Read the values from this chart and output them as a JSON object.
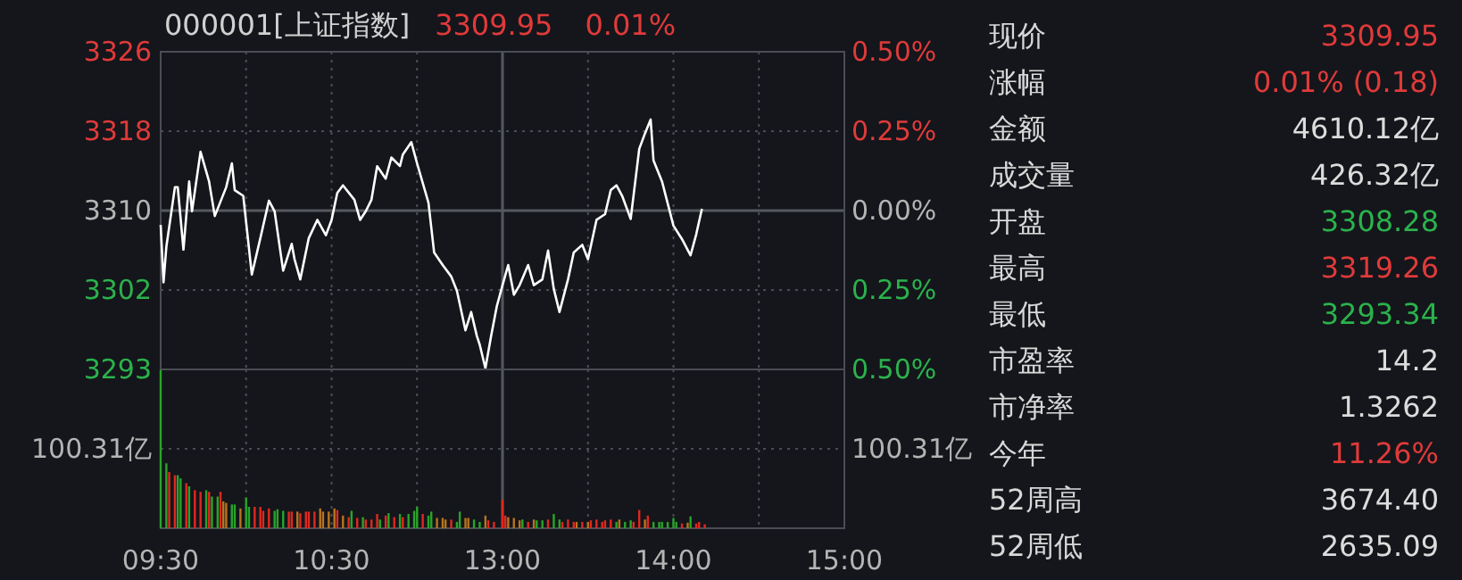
{
  "chart_data": [
    {
      "type": "line",
      "title": "000001[上证指数]",
      "annotations": [
        "3309.95",
        "0.01%"
      ],
      "categories": [
        null,
        null,
        null,
        null,
        null,
        null,
        null,
        null,
        null,
        null,
        null,
        null,
        null,
        null,
        null,
        null,
        null,
        null,
        null,
        null,
        null,
        null,
        null,
        null,
        null,
        null,
        null,
        null,
        null,
        null,
        null,
        null,
        null,
        null,
        null,
        null,
        null,
        null,
        null,
        null,
        null,
        null,
        null,
        null,
        null,
        null,
        null,
        null,
        null,
        null,
        null,
        null,
        null,
        null,
        null,
        null,
        null,
        null,
        null,
        null,
        null,
        null,
        null,
        null,
        null,
        null,
        null,
        null,
        null,
        null,
        null,
        null,
        null,
        null,
        null,
        null,
        null,
        null,
        null,
        null,
        null,
        null,
        null,
        null,
        null,
        null,
        null,
        null,
        null,
        null,
        null,
        null,
        null,
        null,
        null,
        null,
        null,
        null,
        null,
        null,
        null,
        null,
        null,
        null,
        null,
        null,
        null,
        null,
        null,
        null,
        null,
        null,
        null,
        null,
        null,
        null,
        null,
        null,
        null,
        null,
        null,
        null,
        null,
        null,
        null,
        null,
        null,
        null,
        null,
        null,
        null,
        null,
        null,
        null,
        null,
        null,
        null,
        null,
        null,
        null,
        null,
        null,
        null,
        null,
        null,
        null,
        null,
        null,
        null,
        null,
        null,
        null,
        null,
        null,
        null,
        null,
        null,
        null,
        null,
        null,
        null,
        null,
        null,
        null,
        null,
        null,
        null,
        null,
        null,
        null,
        null,
        null,
        null,
        null,
        null,
        null,
        null,
        null,
        null,
        null,
        null,
        null,
        null,
        null,
        null,
        null,
        null,
        null,
        null,
        null,
        null,
        null,
        null,
        null,
        null,
        null,
        null,
        null,
        null,
        null,
        null,
        null,
        null,
        null,
        null,
        null,
        null,
        null,
        null,
        null,
        null,
        null,
        null,
        null,
        null,
        null,
        null,
        null,
        null,
        null,
        null,
        null,
        null,
        null,
        null,
        null,
        null,
        null,
        null,
        null,
        null,
        null,
        null,
        null,
        null,
        null,
        null,
        null,
        null,
        null,
        null
      ],
      "series": [
        {
          "color": "#ffffff",
          "values": [
            3308.28,
            3302.3,
            3306.0,
            null,
            null,
            3312.2,
            3312.2,
            null,
            3305.7,
            null,
            3312.8,
            3309.7,
            null,
            null,
            3315.9,
            null,
            null,
            3312.8,
            null,
            3309.2,
            null,
            null,
            null,
            3312.2,
            null,
            3314.7,
            3311.9,
            null,
            null,
            3311.3,
            null,
            null,
            3303.1,
            null,
            null,
            3306.9,
            null,
            null,
            3310.8,
            null,
            3309.7,
            null,
            null,
            3303.5,
            null,
            null,
            3306.3,
            3304.7,
            null,
            3302.6,
            null,
            null,
            3306.9,
            null,
            null,
            3308.8,
            null,
            null,
            3307.2,
            null,
            3308.8,
            null,
            3311.6,
            null,
            3312.4,
            null,
            null,
            null,
            3310.9,
            null,
            3308.8,
            null,
            3309.7,
            null,
            3310.9,
            null,
            3314.4,
            null,
            null,
            3313.1,
            null,
            3315.3,
            null,
            null,
            3314.4,
            3315.6,
            null,
            null,
            3316.9,
            null,
            3314.7,
            null,
            null,
            null,
            3310.6,
            null,
            3305.4,
            null,
            null,
            3304.1,
            null,
            null,
            3302.9,
            null,
            3301.4,
            null,
            null,
            3297.3,
            null,
            3299.2,
            null,
            3296.7,
            3295.8,
            null,
            3293.34,
            null,
            3296.7,
            null,
            3299.8,
            null,
            3302.0,
            null,
            3304.1,
            null,
            3301.0,
            null,
            3302.0,
            null,
            null,
            3304.1,
            null,
            3302.0,
            null,
            null,
            3302.6,
            null,
            3305.6,
            null,
            3301.6,
            null,
            3299.2,
            null,
            null,
            3302.6,
            null,
            3305.4,
            null,
            null,
            3306.2,
            null,
            3304.7,
            null,
            null,
            3308.8,
            null,
            null,
            3309.4,
            null,
            3311.9,
            null,
            3312.4,
            null,
            3311.3,
            null,
            null,
            3308.9,
            null,
            null,
            3316.2,
            null,
            3317.8,
            null,
            3319.26,
            3315.0,
            null,
            null,
            3312.8,
            null,
            3310.5,
            null,
            3308.2,
            null,
            null,
            3306.8,
            null,
            null,
            3305.1,
            null,
            3307.3,
            null,
            3309.95,
            null,
            null,
            null,
            null,
            null,
            null,
            null,
            null,
            null,
            null,
            null,
            null,
            null,
            null,
            null,
            null,
            null,
            null,
            null,
            null,
            null,
            null,
            null,
            null,
            null,
            null,
            null,
            null,
            null,
            null,
            null,
            null,
            null,
            null,
            null,
            null,
            null,
            null,
            null,
            null,
            null,
            null,
            null,
            null,
            null,
            null,
            null,
            null,
            null,
            null
          ]
        }
      ],
      "ylim": [
        3293.22,
        3326.32
      ],
      "yticks": [
        {
          "value": 3326.32,
          "label": "3326"
        },
        {
          "value": 3318.04,
          "label": "3318"
        },
        {
          "value": 3309.77,
          "label": "3310"
        },
        {
          "value": 3301.5,
          "label": "3302"
        },
        {
          "value": 3293.22,
          "label": "3293"
        }
      ],
      "y2lim": [
        -0.5,
        0.5
      ],
      "y2ticks": [
        {
          "value": 0.5,
          "label": "0.50%"
        },
        {
          "value": 0.25,
          "label": "0.25%"
        },
        {
          "value": 0,
          "label": "0.00%"
        },
        {
          "value": -0.25,
          "label": "0.25%"
        },
        {
          "value": -0.5,
          "label": "0.50%"
        }
      ],
      "tick_labels": "y",
      "grid": true,
      "marker": "none",
      "line_style": "solid"
    },
    {
      "type": "bar",
      "annotations": [
        "100.31亿"
      ],
      "categories": [
        "09:30",
        null,
        null,
        null,
        null,
        null,
        null,
        null,
        null,
        null,
        null,
        null,
        null,
        null,
        null,
        null,
        null,
        null,
        null,
        null,
        null,
        null,
        null,
        null,
        null,
        null,
        null,
        null,
        null,
        null,
        null,
        null,
        null,
        null,
        null,
        null,
        null,
        null,
        null,
        null,
        null,
        null,
        null,
        null,
        null,
        null,
        null,
        null,
        null,
        null,
        null,
        null,
        null,
        null,
        null,
        null,
        null,
        null,
        null,
        null,
        "10:30",
        null,
        null,
        null,
        null,
        null,
        null,
        null,
        null,
        null,
        null,
        null,
        null,
        null,
        null,
        null,
        null,
        null,
        null,
        null,
        null,
        null,
        null,
        null,
        null,
        null,
        null,
        null,
        null,
        null,
        null,
        null,
        null,
        null,
        null,
        null,
        null,
        null,
        null,
        null,
        null,
        null,
        null,
        null,
        null,
        null,
        null,
        null,
        null,
        null,
        null,
        null,
        null,
        null,
        null,
        null,
        null,
        null,
        null,
        null,
        "13:00",
        null,
        null,
        null,
        null,
        null,
        null,
        null,
        null,
        null,
        null,
        null,
        null,
        null,
        null,
        null,
        null,
        null,
        null,
        null,
        null,
        null,
        null,
        null,
        null,
        null,
        null,
        null,
        null,
        null,
        null,
        null,
        null,
        null,
        null,
        null,
        null,
        null,
        null,
        null,
        null,
        null,
        null,
        null,
        null,
        null,
        null,
        null,
        null,
        null,
        null,
        null,
        null,
        null,
        null,
        null,
        null,
        null,
        null,
        null,
        "14:00",
        null,
        null,
        null,
        null,
        null,
        null,
        null,
        null,
        null,
        null,
        null,
        null,
        null,
        null,
        null,
        null,
        null,
        null,
        null,
        null,
        null,
        null,
        null,
        null,
        null,
        null,
        null,
        null,
        null,
        null,
        null,
        null,
        null,
        null,
        null,
        null,
        null,
        null,
        null,
        null,
        null,
        null,
        null,
        null,
        null,
        null,
        null,
        null,
        null,
        null,
        null,
        null,
        null,
        null,
        null,
        null,
        null,
        null,
        null,
        "15:00"
      ],
      "values": [
        200,
        null,
        82,
        71,
        null,
        67,
        67,
        63,
        null,
        57,
        53,
        null,
        48,
        null,
        46,
        null,
        48,
        46,
        40,
        null,
        40,
        46,
        34,
        32,
        null,
        30,
        30,
        null,
        25,
        null,
        39,
        27,
        null,
        27,
        null,
        27,
        22,
        null,
        25,
        null,
        22,
        24,
        null,
        22,
        null,
        21,
        21,
        null,
        21,
        19,
        null,
        21,
        21,
        null,
        21,
        null,
        25,
        21,
        null,
        21,
        null,
        25,
        23,
        null,
        16,
        null,
        14,
        22,
        null,
        13,
        null,
        14,
        11,
        null,
        11,
        null,
        18,
        11,
        null,
        16,
        19,
        null,
        14,
        null,
        18,
        14,
        null,
        18,
        null,
        22,
        27,
        null,
        18,
        null,
        16,
        21,
        null,
        13,
        null,
        13,
        11,
        null,
        11,
        null,
        8,
        21,
        null,
        13,
        13,
        null,
        11,
        null,
        8,
        null,
        16,
        10,
        null,
        8,
        null,
        null,
        36,
        16,
        14,
        null,
        13,
        null,
        10,
        11,
        null,
        8,
        null,
        11,
        10,
        null,
        10,
        null,
        11,
        null,
        18,
        null,
        11,
        8,
        null,
        11,
        null,
        8,
        8,
        null,
        8,
        null,
        8,
        10,
        null,
        11,
        null,
        8,
        10,
        null,
        11,
        null,
        8,
        11,
        null,
        8,
        null,
        10,
        8,
        null,
        23,
        null,
        11,
        16,
        null,
        8,
        null,
        8,
        8,
        null,
        8,
        null,
        13,
        8,
        null,
        6,
        null,
        7,
        15,
        null,
        6,
        8,
        null,
        5,
        null,
        null,
        null,
        null,
        null,
        null,
        null,
        null,
        null,
        null,
        null,
        null,
        null,
        null,
        null,
        null,
        null,
        null,
        null,
        null,
        null,
        null,
        null,
        null,
        null,
        null,
        null,
        null,
        null,
        null,
        null,
        null,
        null,
        null,
        null,
        null,
        null,
        null,
        null,
        null,
        null,
        null,
        null,
        null,
        null,
        null,
        null,
        null,
        null
      ],
      "colors": [
        "#28a428",
        null,
        "#28a428",
        "#e0281f",
        null,
        "#e0281f",
        "#28a428",
        "#28a428",
        null,
        "#e0281f",
        "#28a428",
        null,
        "#e0281f",
        null,
        "#e0281f",
        null,
        "#28a428",
        "#e0281f",
        "#28a428",
        null,
        "#28a428",
        "#e0281f",
        "#b8741c",
        "#b8741c",
        null,
        "#28a428",
        "#28a428",
        null,
        "#b8741c",
        null,
        "#28a428",
        "#28a428",
        null,
        "#e0281f",
        null,
        "#e0281f",
        "#e0281f",
        null,
        "#e0281f",
        null,
        "#28a428",
        "#28a428",
        null,
        "#28a428",
        null,
        "#e0281f",
        "#e0281f",
        null,
        "#b8741c",
        "#e0281f",
        null,
        "#e0281f",
        "#e0281f",
        null,
        "#e0281f",
        null,
        "#b8741c",
        "#b8741c",
        null,
        "#b8741c",
        null,
        "#b8741c",
        "#e0281f",
        null,
        "#b8741c",
        null,
        "#e0281f",
        "#28a428",
        null,
        "#e0281f",
        null,
        "#28a428",
        "#e0281f",
        null,
        "#e0281f",
        null,
        "#e0281f",
        "#28a428",
        null,
        "#e0281f",
        "#28a428",
        null,
        "#e0281f",
        null,
        "#28a428",
        "#e0281f",
        null,
        "#28a428",
        null,
        "#28a428",
        "#28a428",
        null,
        "#e0281f",
        null,
        "#28a428",
        "#28a428",
        null,
        "#b8741c",
        null,
        "#b8741c",
        "#b8741c",
        null,
        "#e0281f",
        null,
        "#28a428",
        "#28a428",
        null,
        "#b8741c",
        "#b8741c",
        null,
        "#28a428",
        null,
        "#28a428",
        null,
        "#b8741c",
        "#e0281f",
        null,
        "#e0281f",
        null,
        null,
        "#e0281f",
        "#e0281f",
        "#b8741c",
        null,
        "#b8741c",
        null,
        "#b8741c",
        "#28a428",
        null,
        "#e0281f",
        null,
        "#b8741c",
        "#28a428",
        null,
        "#28a428",
        null,
        "#e0281f",
        null,
        "#28a428",
        null,
        "#28a428",
        "#e0281f",
        null,
        "#e0281f",
        null,
        "#e0281f",
        "#b8741c",
        null,
        "#e0281f",
        null,
        "#b8741c",
        "#e0281f",
        null,
        "#e0281f",
        null,
        "#e0281f",
        "#e0281f",
        null,
        "#e0281f",
        null,
        "#28a428",
        "#b8741c",
        null,
        "#28a428",
        null,
        "#28a428",
        "#e0281f",
        null,
        "#e0281f",
        null,
        "#b8741c",
        "#e0281f",
        null,
        "#28a428",
        null,
        "#28a428",
        "#28a428",
        null,
        "#28a428",
        null,
        "#28a428",
        "#28a428",
        null,
        "#e0281f",
        null,
        "#b8741c",
        "#28a428",
        null,
        "#e0281f",
        "#e0281f",
        null,
        "#e0281f",
        null,
        null,
        null,
        null,
        null,
        null,
        null,
        null,
        null,
        null,
        null,
        null,
        null,
        null,
        null,
        null,
        null,
        null,
        null,
        null,
        null,
        null,
        null,
        null,
        null,
        null,
        null,
        null,
        null,
        null,
        null,
        null,
        null,
        null,
        null,
        null,
        null,
        null,
        null,
        null,
        null,
        null,
        null,
        null,
        null,
        null,
        null,
        null,
        null
      ],
      "ylim": [
        0,
        200.62
      ],
      "yticks": [
        {
          "value": 100.31,
          "label": "100.31亿"
        }
      ],
      "grid": true
    },
    {
      "type": "other",
      "categories": [
        "现价",
        "涨幅",
        "金额",
        "成交量",
        "开盘",
        "最高",
        "最低",
        "市盈率",
        "市净率",
        "今年",
        "52周高",
        "52周低"
      ],
      "value_labels": [
        "3309.95",
        "0.01% (0.18)",
        "4610.12亿",
        "426.32亿",
        "3308.28",
        "3319.26",
        "3293.34",
        "14.2",
        "1.3262",
        "11.26%",
        "3674.40",
        "2635.09"
      ],
      "colors": [
        "#e03a3a",
        "#e03a3a",
        "#dcdcdc",
        "#dcdcdc",
        "#2bb24c",
        "#e03a3a",
        "#2bb24c",
        "#dcdcdc",
        "#dcdcdc",
        "#e03a3a",
        "#dcdcdc",
        "#dcdcdc"
      ]
    }
  ]
}
